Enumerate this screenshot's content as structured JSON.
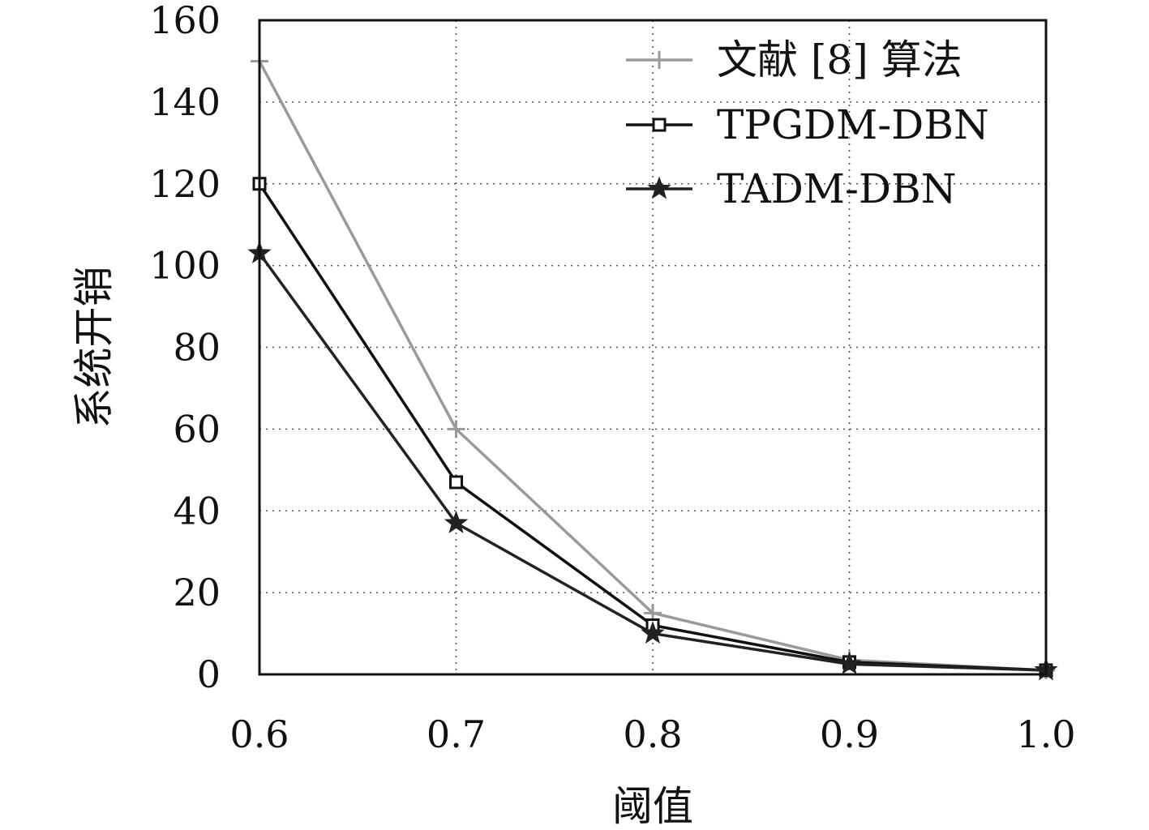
{
  "chart_data": {
    "type": "line",
    "xlabel": "阈值",
    "ylabel": "系统开销",
    "xlim": [
      0.6,
      1.0
    ],
    "ylim": [
      0,
      160
    ],
    "x": [
      0.6,
      0.7,
      0.8,
      0.9,
      1.0
    ],
    "x_tick_labels": [
      "0.6",
      "0.7",
      "0.8",
      "0.9",
      "1.0"
    ],
    "y_ticks": [
      0,
      20,
      40,
      60,
      80,
      100,
      120,
      140,
      160
    ],
    "grid": true,
    "legend_position": "top-right",
    "series": [
      {
        "name": "文献 [8] 算法",
        "values": [
          150,
          60,
          15,
          3.5,
          1
        ],
        "color": "#9a9a9a",
        "marker": "plus"
      },
      {
        "name": "TPGDM-DBN",
        "values": [
          120,
          47,
          12,
          3,
          1
        ],
        "color": "#111111",
        "marker": "square"
      },
      {
        "name": "TADM-DBN",
        "values": [
          103,
          37,
          10,
          2.5,
          1
        ],
        "color": "#222222",
        "marker": "star"
      }
    ]
  }
}
